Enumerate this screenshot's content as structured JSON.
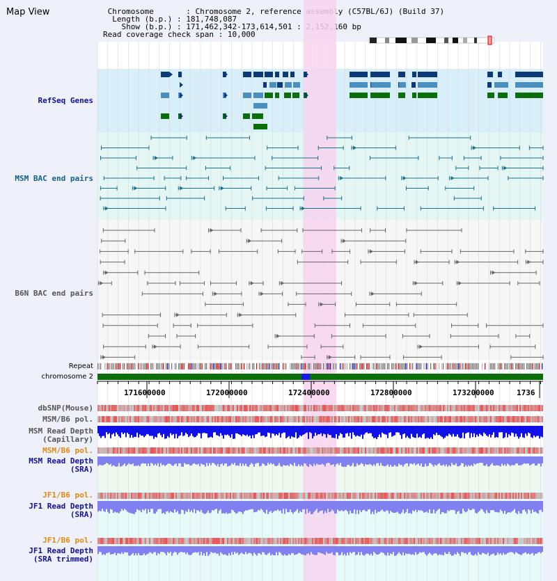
{
  "app": {
    "title": "Map View"
  },
  "info": {
    "chromosome_label": "Chromosome",
    "chromosome_value": "Chromosome 2, reference assembly (C57BL/6J) (Build 37)",
    "length_label": "Length (b.p.)",
    "length_value": "181,748,087",
    "show_label": "Show (b.p.)",
    "show_value": "171,462,342-173,614,501 : 2,152,160 bp",
    "coverage_label": "Read coverage check span",
    "coverage_value": "10,000"
  },
  "tracks": {
    "refseq": "RefSeq Genes",
    "msm_bac": "MSM BAC end pairs",
    "b6n_bac": "B6N BAC end pairs",
    "repeat": "Repeat",
    "chromosome": "chromosome 2",
    "dbsnp": "dbSNP(Mouse)",
    "msm_b6_pol_1": "MSM/B6 pol.",
    "msm_depth_cap_1": "MSM Read Depth",
    "msm_depth_cap_2": "(Capillary)",
    "msm_b6_pol_2": "MSM/B6 pol.",
    "msm_depth_sra_1": "MSM Read Depth",
    "msm_depth_sra_2": "(SRA)",
    "jf1_b6_pol_1": "JF1/B6 pol.",
    "jf1_depth_sra_1": "JF1 Read Depth",
    "jf1_depth_sra_2": "(SRA)",
    "jf1_b6_pol_2": "JF1/B6 pol.",
    "jf1_depth_trim_1": "JF1 Read Depth",
    "jf1_depth_trim_2": "(SRA trimmed)"
  },
  "axis": {
    "ticks": [
      "171600000",
      "172000000",
      "172400000",
      "172800000",
      "173200000",
      "1736"
    ]
  },
  "colors": {
    "highlight": "#f7d5ef",
    "refseq_bg": "#d8effa",
    "msm_bg": "#e4f7f5",
    "b6n_bg": "#f6f6f6",
    "gene_dark": "#0b3a7a",
    "gene_mid": "#4a8fbd",
    "gene_green": "#0a6e0a",
    "msm_line": "#1a6e8e",
    "b6n_line": "#666666",
    "chromosome": "#0a6e0a",
    "snp": "#e84a4a",
    "depth_cap": "#1010e8",
    "depth_sra": "#8080f0",
    "label_blue": "#10109a",
    "label_teal": "#10608a",
    "label_gray": "#555555",
    "label_orange": "#e08a10"
  }
}
